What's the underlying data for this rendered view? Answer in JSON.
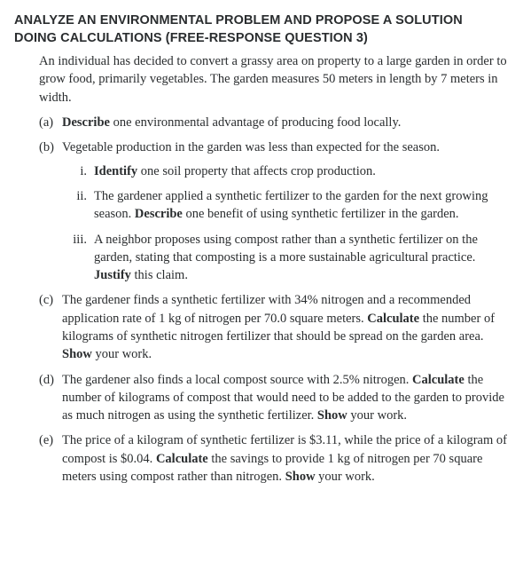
{
  "title_line1": "ANALYZE AN ENVIRONMENTAL PROBLEM AND PROPOSE A SOLUTION",
  "title_line2": "DOING CALCULATIONS (FREE-RESPONSE QUESTION 3)",
  "intro": "An individual has decided to convert a grassy area on property to a large garden in order to grow food, primarily vegetables. The garden measures 50 meters in length by 7 meters in width.",
  "parts": {
    "a": {
      "marker": "(a)",
      "kw": "Describe",
      "rest": " one environmental advantage of producing food locally."
    },
    "b": {
      "marker": "(b)",
      "lead": "Vegetable production in the garden was less than expected for the season.",
      "i": {
        "marker": "i.",
        "kw": "Identify",
        "rest": " one soil property that affects crop production."
      },
      "ii": {
        "marker": "ii.",
        "pre": "The gardener applied a synthetic fertilizer to the garden for the next growing season. ",
        "kw": "Describe",
        "rest": " one benefit of using synthetic fertilizer in the garden."
      },
      "iii": {
        "marker": "iii.",
        "pre": "A neighbor proposes using compost rather than a synthetic fertilizer on the garden, stating that composting is a more sustainable agricultural practice. ",
        "kw": "Justify",
        "rest": " this claim."
      }
    },
    "c": {
      "marker": "(c)",
      "pre": "The gardener finds a synthetic fertilizer with 34% nitrogen and a recommended application rate of 1 kg of nitrogen per 70.0 square meters. ",
      "kw": "Calculate",
      "mid": " the number of kilograms of synthetic nitrogen fertilizer that should be spread on the garden area. ",
      "kw2": "Show",
      "rest": " your work."
    },
    "d": {
      "marker": "(d)",
      "pre": "The gardener also finds a local compost source with 2.5% nitrogen. ",
      "kw": "Calculate",
      "mid": " the number of kilograms of compost that would need to be added to the garden to provide as much nitrogen as using the synthetic fertilizer. ",
      "kw2": "Show",
      "rest": " your work."
    },
    "e": {
      "marker": "(e)",
      "pre": "The price of a kilogram of synthetic fertilizer is $3.11, while the price of a kilogram of compost is $0.04. ",
      "kw": "Calculate",
      "mid": " the savings to provide 1 kg of nitrogen per 70 square meters using compost rather than nitrogen. ",
      "kw2": "Show",
      "rest": " your work."
    }
  }
}
